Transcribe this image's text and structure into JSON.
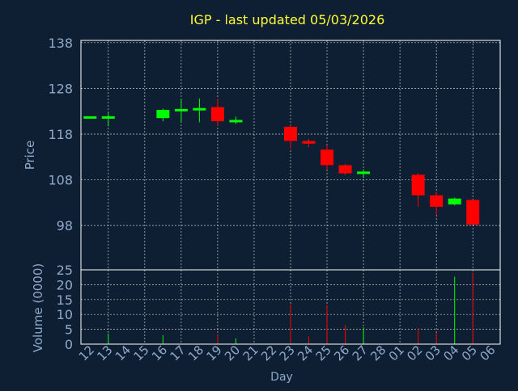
{
  "title": "IGP - last updated 05/03/2026",
  "colors": {
    "background": "#0f1f33",
    "title": "#ffff33",
    "axis_text": "#8fa9c9",
    "frame": "#ffffff",
    "grid": "#ffffff",
    "up": "#00ff00",
    "down": "#ff0000"
  },
  "chart_data": [
    {
      "type": "candlestick",
      "ylabel": "Price",
      "ylim": [
        88.3,
        138.5
      ],
      "yticks": [
        98,
        108,
        118,
        128,
        138
      ],
      "grid": true,
      "x_dates": [
        "12",
        "13",
        "14",
        "15",
        "16",
        "17",
        "18",
        "19",
        "20",
        "21",
        "22",
        "23",
        "24",
        "25",
        "26",
        "27",
        "28",
        "01",
        "02",
        "03",
        "04",
        "05",
        "06"
      ],
      "candles": [
        {
          "date": "12",
          "open": 121.6,
          "high": 121.9,
          "low": 121.4,
          "close": 121.9
        },
        {
          "date": "13",
          "open": 121.6,
          "high": 122.8,
          "low": 119.7,
          "close": 121.9
        },
        {
          "date": "16",
          "open": 121.5,
          "high": 123.6,
          "low": 120.8,
          "close": 123.3
        },
        {
          "date": "17",
          "open": 123.3,
          "high": 125.6,
          "low": 120.6,
          "close": 123.5
        },
        {
          "date": "18",
          "open": 123.4,
          "high": 125.8,
          "low": 120.6,
          "close": 123.7
        },
        {
          "date": "19",
          "open": 123.9,
          "high": 125.8,
          "low": 119.8,
          "close": 120.8
        },
        {
          "date": "20",
          "open": 120.8,
          "high": 121.8,
          "low": 120.2,
          "close": 121.1
        },
        {
          "date": "23",
          "open": 119.6,
          "high": 119.9,
          "low": 114.8,
          "close": 116.5
        },
        {
          "date": "24",
          "open": 116.5,
          "high": 116.9,
          "low": 115.1,
          "close": 115.9
        },
        {
          "date": "25",
          "open": 114.6,
          "high": 115.6,
          "low": 110.2,
          "close": 111.2
        },
        {
          "date": "26",
          "open": 111.2,
          "high": 111.4,
          "low": 109.1,
          "close": 109.4
        },
        {
          "date": "27",
          "open": 109.4,
          "high": 110.3,
          "low": 108.4,
          "close": 109.8
        },
        {
          "date": "02",
          "open": 109.1,
          "high": 109.4,
          "low": 102.1,
          "close": 104.6
        },
        {
          "date": "03",
          "open": 104.6,
          "high": 105.4,
          "low": 100.3,
          "close": 102.1
        },
        {
          "date": "04",
          "open": 102.6,
          "high": 104.1,
          "low": 102.4,
          "close": 103.9
        },
        {
          "date": "05",
          "open": 103.6,
          "high": 103.6,
          "low": 98.2,
          "close": 98.2
        }
      ]
    },
    {
      "type": "bar",
      "ylabel": "Volume (0000)",
      "xlabel": "Day",
      "ylim": [
        0,
        25
      ],
      "yticks": [
        0,
        5,
        10,
        15,
        20,
        25
      ],
      "grid": true,
      "x_dates": [
        "12",
        "13",
        "14",
        "15",
        "16",
        "17",
        "18",
        "19",
        "20",
        "21",
        "22",
        "23",
        "24",
        "25",
        "26",
        "27",
        "28",
        "01",
        "02",
        "03",
        "04",
        "05",
        "06"
      ],
      "volumes": [
        {
          "date": "13",
          "value": 3.5,
          "direction": "up"
        },
        {
          "date": "16",
          "value": 3.0,
          "direction": "up"
        },
        {
          "date": "19",
          "value": 3.2,
          "direction": "down"
        },
        {
          "date": "20",
          "value": 2.0,
          "direction": "up"
        },
        {
          "date": "23",
          "value": 13.5,
          "direction": "down"
        },
        {
          "date": "24",
          "value": 2.6,
          "direction": "down"
        },
        {
          "date": "25",
          "value": 13.2,
          "direction": "down"
        },
        {
          "date": "26",
          "value": 6.4,
          "direction": "down"
        },
        {
          "date": "27",
          "value": 5.6,
          "direction": "up"
        },
        {
          "date": "02",
          "value": 5.3,
          "direction": "down"
        },
        {
          "date": "03",
          "value": 3.9,
          "direction": "down"
        },
        {
          "date": "04",
          "value": 22.7,
          "direction": "up"
        },
        {
          "date": "05",
          "value": 24.0,
          "direction": "down"
        }
      ]
    }
  ]
}
